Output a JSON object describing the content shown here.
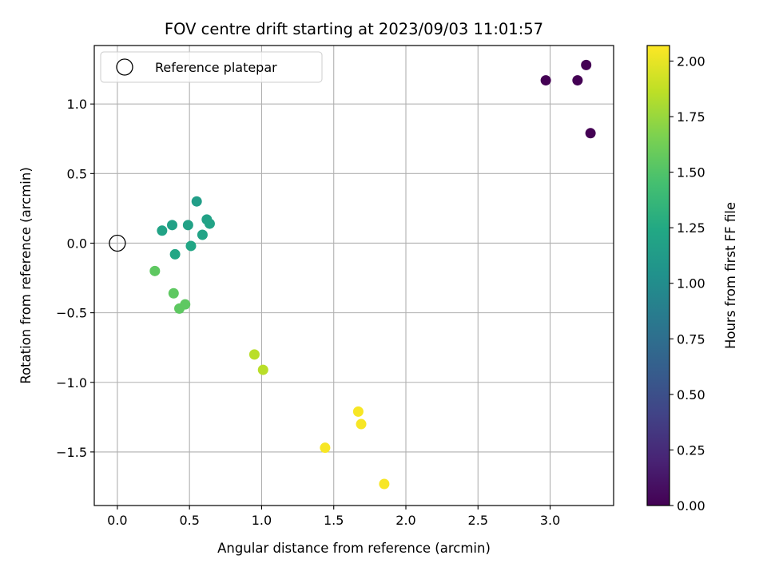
{
  "chart_data": {
    "type": "scatter",
    "title": "FOV centre drift starting at 2023/09/03 11:01:57",
    "xlabel": "Angular distance from reference (arcmin)",
    "ylabel": "Rotation from reference (arcmin)",
    "xlim": [
      -0.16,
      3.44
    ],
    "ylim": [
      -1.885,
      1.42
    ],
    "xticks": [
      0.0,
      0.5,
      1.0,
      1.5,
      2.0,
      2.5,
      3.0
    ],
    "xtick_labels": [
      "0.0",
      "0.5",
      "1.0",
      "1.5",
      "2.0",
      "2.5",
      "3.0"
    ],
    "yticks": [
      -1.5,
      -1.0,
      -0.5,
      0.0,
      0.5,
      1.0
    ],
    "ytick_labels": [
      "−1.5",
      "−1.0",
      "−0.5",
      "0.0",
      "0.5",
      "1.0"
    ],
    "grid": true,
    "legend": {
      "label": "Reference platepar",
      "location": "upper-left"
    },
    "reference_point": {
      "x": 0.0,
      "y": 0.0
    },
    "colorbar": {
      "label": "Hours from first FF file",
      "colormap": "viridis",
      "range": [
        0.0,
        2.07
      ],
      "ticks": [
        0.0,
        0.25,
        0.5,
        0.75,
        1.0,
        1.25,
        1.5,
        1.75,
        2.0
      ],
      "tick_labels": [
        "0.00",
        "0.25",
        "0.50",
        "0.75",
        "1.00",
        "1.25",
        "1.50",
        "1.75",
        "2.00"
      ]
    },
    "points": [
      {
        "x": 2.97,
        "y": 1.17,
        "hours": 0.0
      },
      {
        "x": 3.19,
        "y": 1.17,
        "hours": 0.0
      },
      {
        "x": 3.25,
        "y": 1.28,
        "hours": 0.0
      },
      {
        "x": 3.28,
        "y": 0.79,
        "hours": 0.0
      },
      {
        "x": 0.31,
        "y": 0.09,
        "hours": 1.2
      },
      {
        "x": 0.38,
        "y": 0.13,
        "hours": 1.18
      },
      {
        "x": 0.4,
        "y": -0.08,
        "hours": 1.22
      },
      {
        "x": 0.49,
        "y": 0.13,
        "hours": 1.18
      },
      {
        "x": 0.51,
        "y": -0.02,
        "hours": 1.22
      },
      {
        "x": 0.55,
        "y": 0.3,
        "hours": 1.15
      },
      {
        "x": 0.59,
        "y": 0.06,
        "hours": 1.2
      },
      {
        "x": 0.62,
        "y": 0.17,
        "hours": 1.18
      },
      {
        "x": 0.64,
        "y": 0.14,
        "hours": 1.2
      },
      {
        "x": 0.26,
        "y": -0.2,
        "hours": 1.55
      },
      {
        "x": 0.39,
        "y": -0.36,
        "hours": 1.55
      },
      {
        "x": 0.43,
        "y": -0.47,
        "hours": 1.55
      },
      {
        "x": 0.47,
        "y": -0.44,
        "hours": 1.55
      },
      {
        "x": 0.95,
        "y": -0.8,
        "hours": 1.85
      },
      {
        "x": 1.01,
        "y": -0.91,
        "hours": 1.85
      },
      {
        "x": 1.44,
        "y": -1.47,
        "hours": 2.05
      },
      {
        "x": 1.67,
        "y": -1.21,
        "hours": 2.05
      },
      {
        "x": 1.69,
        "y": -1.3,
        "hours": 2.05
      },
      {
        "x": 1.85,
        "y": -1.73,
        "hours": 2.05
      }
    ]
  }
}
